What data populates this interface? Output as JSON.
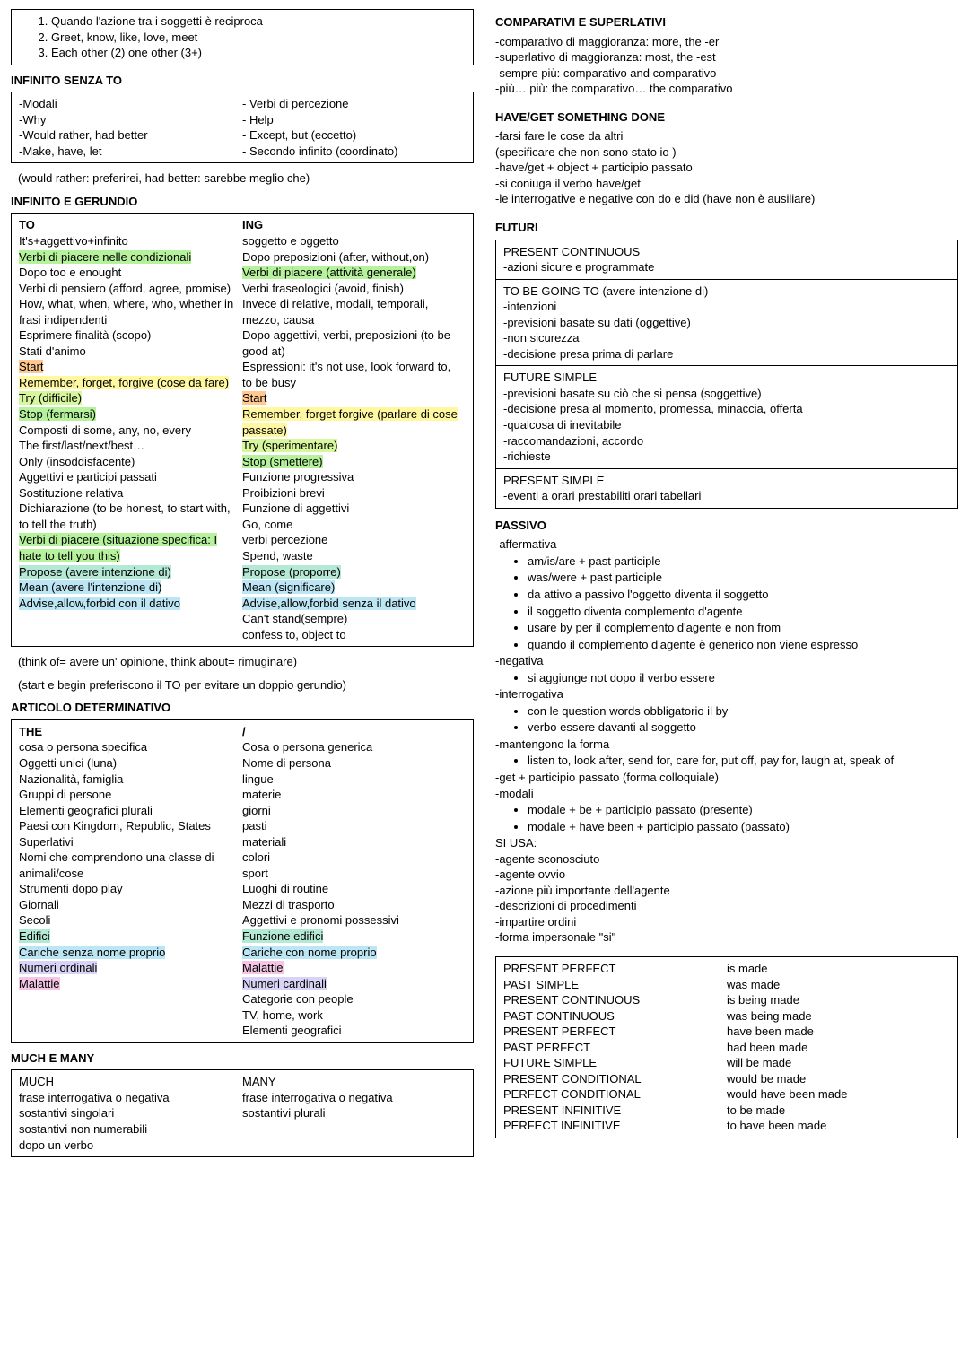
{
  "topBox": {
    "items": [
      "Quando l'azione tra i soggetti è reciproca",
      "Greet, know, like, love, meet",
      "Each other (2) one other (3+)"
    ]
  },
  "infSenzaTo": {
    "title": "INFINITO SENZA TO",
    "left": [
      "-Modali",
      "-Why",
      "-Would rather, had better",
      "-Make, have, let"
    ],
    "right": [
      "- Verbi di percezione",
      "- Help",
      "- Except, but (eccetto)",
      "- Secondo infinito (coordinato)"
    ],
    "note": "(would rather: preferirei, had better: sarebbe meglio che)"
  },
  "infGer": {
    "title": "INFINITO E GERUNDIO",
    "toHead": "TO",
    "ingHead": "ING",
    "to": [
      {
        "t": "It's+aggettivo+infinito"
      },
      {
        "t": "Verbi di piacere nelle condizionali",
        "c": "hl-green"
      },
      {
        "t": "Dopo too e enought"
      },
      {
        "t": "Verbi di pensiero (afford, agree, promise)"
      },
      {
        "t": "How, what, when, where, who, whether in frasi indipendenti"
      },
      {
        "t": "Esprimere finalità (scopo)"
      },
      {
        "t": "Stati d'animo"
      },
      {
        "t": "Start",
        "c": "hl-orange"
      },
      {
        "t": "Remember, forget, forgive (cose da fare)",
        "c": "hl-yellow"
      },
      {
        "t": "Try (difficile)",
        "c": "hl-lime"
      },
      {
        "t": "Stop (fermarsi)",
        "c": "hl-green"
      },
      {
        "t": "Composti di some, any, no, every"
      },
      {
        "t": "The first/last/next/best…"
      },
      {
        "t": "Only (insoddisfacente)"
      },
      {
        "t": "Aggettivi e participi passati"
      },
      {
        "t": "Sostituzione relativa"
      },
      {
        "t": "Dichiarazione (to be honest, to start with, to tell the truth)"
      },
      {
        "t": "Verbi di piacere (situazione specifica: I hate to tell you this)",
        "c": "hl-green"
      },
      {
        "t": "Propose (avere intenzione di)",
        "c": "hl-teal"
      },
      {
        "t": "Mean (avere l'intenzione di)",
        "c": "hl-cyan"
      },
      {
        "t": "Advise,allow,forbid con il dativo",
        "c": "hl-cyan"
      }
    ],
    "ing": [
      {
        "t": "soggetto e oggetto"
      },
      {
        "t": "Dopo preposizioni (after, without,on)"
      },
      {
        "t": "Verbi di piacere (attività generale)",
        "c": "hl-green"
      },
      {
        "t": "Verbi fraseologici (avoid, finish)"
      },
      {
        "t": "Invece di relative, modali, temporali, mezzo, causa"
      },
      {
        "t": "Dopo aggettivi, verbi, preposizioni (to be good at)"
      },
      {
        "t": "Espressioni: it's not use, look forward to, to be busy"
      },
      {
        "t": "Start",
        "c": "hl-orange"
      },
      {
        "t": "Remember, forget forgive (parlare di cose passate)",
        "c": "hl-yellow"
      },
      {
        "t": "Try (sperimentare)",
        "c": "hl-lime"
      },
      {
        "t": "Stop (smettere)",
        "c": "hl-green"
      },
      {
        "t": "Funzione progressiva"
      },
      {
        "t": "Proibizioni brevi"
      },
      {
        "t": "Funzione di aggettivi"
      },
      {
        "t": "Go, come"
      },
      {
        "t": "verbi percezione"
      },
      {
        "t": "Spend, waste"
      },
      {
        "t": "Propose (proporre)",
        "c": "hl-teal"
      },
      {
        "t": "Mean (significare)",
        "c": "hl-cyan"
      },
      {
        "t": "Advise,allow,forbid senza il dativo",
        "c": "hl-cyan"
      },
      {
        "t": "Can't stand(sempre)"
      },
      {
        "t": "confess to, object to"
      }
    ],
    "note1": "(think of= avere un' opinione, think about= rimuginare)",
    "note2": "(start e begin preferiscono il TO per evitare un doppio gerundio)"
  },
  "articolo": {
    "title": "ARTICOLO DETERMINATIVO",
    "theHead": "THE",
    "slashHead": "/",
    "the": [
      {
        "t": "cosa o persona specifica"
      },
      {
        "t": "Oggetti unici (luna)"
      },
      {
        "t": "Nazionalità, famiglia"
      },
      {
        "t": "Gruppi di persone"
      },
      {
        "t": "Elementi geografici plurali"
      },
      {
        "t": "Paesi con Kingdom, Republic, States"
      },
      {
        "t": "Superlativi"
      },
      {
        "t": "Nomi che comprendono una classe di animali/cose"
      },
      {
        "t": "Strumenti dopo play"
      },
      {
        "t": "Giornali"
      },
      {
        "t": "Secoli"
      },
      {
        "t": "Edifici",
        "c": "hl-teal"
      },
      {
        "t": "Cariche senza nome proprio",
        "c": "hl-cyan"
      },
      {
        "t": "Numeri ordinali",
        "c": "hl-lav"
      },
      {
        "t": "Malattie",
        "c": "hl-pink"
      }
    ],
    "none": [
      {
        "t": "Cosa o persona generica"
      },
      {
        "t": "Nome di persona"
      },
      {
        "t": "lingue"
      },
      {
        "t": "materie"
      },
      {
        "t": "giorni"
      },
      {
        "t": "pasti"
      },
      {
        "t": "materiali"
      },
      {
        "t": "colori"
      },
      {
        "t": "sport"
      },
      {
        "t": "Luoghi di routine"
      },
      {
        "t": "Mezzi di trasporto"
      },
      {
        "t": "Aggettivi e pronomi possessivi"
      },
      {
        "t": "Funzione edifici",
        "c": "hl-teal"
      },
      {
        "t": "Cariche con nome proprio",
        "c": "hl-cyan"
      },
      {
        "t": "Malattie",
        "c": "hl-pink"
      },
      {
        "t": "Numeri cardinali",
        "c": "hl-lav"
      },
      {
        "t": "Categorie con people"
      },
      {
        "t": "TV, home, work"
      },
      {
        "t": "Elementi geografici"
      }
    ]
  },
  "muchMany": {
    "title": "MUCH E MANY",
    "muchHead": "MUCH",
    "manyHead": "MANY",
    "much": [
      "frase interrogativa o negativa",
      "sostantivi singolari",
      "sostantivi non numerabili",
      "dopo un verbo"
    ],
    "many": [
      "frase interrogativa o negativa",
      "sostantivi plurali"
    ]
  },
  "compSup": {
    "title": "COMPARATIVI E SUPERLATIVI",
    "items": [
      "-comparativo di maggioranza: more, the -er",
      "-superlativo di maggioranza: most, the  -est",
      "-sempre più: comparativo and comparativo",
      "-più… più: the comparativo… the comparativo"
    ]
  },
  "haveGet": {
    "title": "HAVE/GET SOMETHING DONE",
    "items": [
      "-farsi fare le cose da altri",
      "(specificare che non sono stato io )",
      "-have/get + object + participio passato",
      "-si coniuga il verbo have/get",
      "-le interrogative e negative con do e did (have non è ausiliare)"
    ]
  },
  "futuri": {
    "title": "FUTURI",
    "blocks": [
      [
        "PRESENT CONTINUOUS",
        "-azioni sicure e programmate"
      ],
      [
        "TO BE GOING TO (avere intenzione di)",
        "-intenzioni",
        "-previsioni basate su dati (oggettive)",
        "-non sicurezza",
        "-decisione presa prima di parlare"
      ],
      [
        "FUTURE SIMPLE",
        "-previsioni basate su ciò che si pensa (soggettive)",
        "-decisione presa al momento, promessa, minaccia, offerta",
        "-qualcosa di inevitabile",
        "-raccomandazioni, accordo",
        "-richieste"
      ],
      [
        "PRESENT SIMPLE",
        "-eventi a orari prestabiliti orari tabellari"
      ]
    ]
  },
  "passivo": {
    "title": "PASSIVO",
    "aff": "-affermativa",
    "affItems": [
      "am/is/are + past participle",
      "was/were + past participle",
      "da attivo a passivo l'oggetto diventa il soggetto",
      "il soggetto diventa complemento d'agente",
      "usare by per il complemento d'agente e non from",
      "quando il complemento d'agente è generico non viene espresso"
    ],
    "neg": "-negativa",
    "negItems": [
      "si aggiunge not dopo il verbo essere"
    ],
    "int": "-interrogativa",
    "intItems": [
      "con le question words obbligatorio il by",
      "verbo essere davanti al soggetto"
    ],
    "man": "-mantengono la forma",
    "manItems": [
      "listen to, look after, send for, care for, put off, pay for, laugh at, speak of"
    ],
    "get": "-get + participio passato (forma colloquiale)",
    "mod": "-modali",
    "modItems": [
      "modale + be + participio passato (presente)",
      "modale + have been + participio passato (passato)"
    ],
    "siUsa": "SI USA:",
    "siUsaItems": [
      "-agente sconosciuto",
      "-agente ovvio",
      "-azione più importante dell'agente",
      "-descrizioni di procedimenti",
      "-impartire ordini",
      "-forma impersonale \"si\""
    ]
  },
  "tenseTable": {
    "left": [
      "PRESENT PERFECT",
      "PAST SIMPLE",
      "PRESENT CONTINUOUS",
      "PAST CONTINUOUS",
      "PRESENT PERFECT",
      "PAST PERFECT",
      "FUTURE SIMPLE",
      "PRESENT CONDITIONAL",
      "PERFECT CONDITIONAL",
      "PRESENT INFINITIVE",
      "PERFECT INFINITIVE"
    ],
    "right": [
      "is made",
      "was made",
      "is being made",
      "was being made",
      "have been made",
      "had been made",
      "will be made",
      "would be made",
      "would have been made",
      "to be made",
      "to have been made"
    ]
  }
}
